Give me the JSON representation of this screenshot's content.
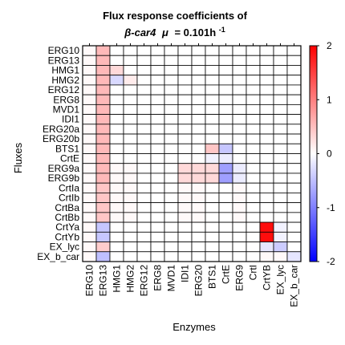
{
  "chart_data": {
    "type": "heatmap",
    "title_line1": "Flux response coefficients of",
    "title_line2_prefix": "β-car4",
    "title_mu": "μ",
    "title_line2_suffix": "= 0.101h",
    "title_superscript": "-1",
    "xlabel": "Enzymes",
    "ylabel": "Fluxes",
    "x_categories": [
      "ERG10",
      "ERG13",
      "HMG1",
      "HMG2",
      "ERG12",
      "ERG8",
      "MVD1",
      "IDI1",
      "ERG20",
      "BTS1",
      "CrtE",
      "ERG9",
      "CrtI",
      "CrtYB",
      "EX_lyc",
      "EX_b_car"
    ],
    "y_categories": [
      "ERG10",
      "ERG13",
      "HMG1",
      "HMG2",
      "ERG12",
      "ERG8",
      "MVD1",
      "IDI1",
      "ERG20a",
      "ERG20b",
      "BTS1",
      "CrtE",
      "ERG9a",
      "ERG9b",
      "CrtIa",
      "CrtIb",
      "CrtBa",
      "CrtBb",
      "CrtYa",
      "CrtYb",
      "EX_lyc",
      "EX_b_car"
    ],
    "values": [
      [
        0.05,
        0.55,
        0,
        0,
        0,
        0,
        0,
        0,
        0,
        0,
        0,
        0,
        0,
        0,
        0,
        0
      ],
      [
        0.05,
        0.55,
        0,
        0,
        0,
        0,
        0,
        0,
        0,
        0,
        0,
        0,
        0,
        0,
        0,
        0
      ],
      [
        0.05,
        0.55,
        0.3,
        0,
        0,
        0,
        0,
        0,
        0,
        0,
        0,
        0,
        0,
        0,
        0,
        0
      ],
      [
        0.05,
        0.55,
        -0.3,
        0.15,
        0,
        0,
        0,
        0,
        0,
        0,
        0,
        0,
        0,
        0,
        0,
        0
      ],
      [
        0.05,
        0.55,
        0,
        0,
        0,
        0,
        0,
        0,
        0,
        0,
        0,
        0,
        0,
        0,
        0,
        0
      ],
      [
        0.05,
        0.55,
        0,
        0,
        0,
        0,
        0,
        0,
        0,
        0,
        0,
        0,
        0,
        0,
        0,
        0
      ],
      [
        0.05,
        0.55,
        0,
        0,
        0,
        0,
        0,
        0,
        0,
        0,
        0,
        0,
        0,
        0,
        0,
        0
      ],
      [
        0.05,
        0.55,
        0,
        0,
        0,
        0,
        0,
        0,
        0,
        0,
        0,
        0,
        0,
        0,
        0,
        0
      ],
      [
        0.05,
        0.55,
        0,
        0,
        0,
        0,
        0,
        0,
        0,
        0,
        0,
        0,
        0,
        0,
        0,
        0
      ],
      [
        0.05,
        0.55,
        0,
        0,
        0,
        0,
        0,
        0,
        0,
        0,
        0,
        0,
        0,
        0,
        0,
        0
      ],
      [
        0.05,
        0.55,
        0,
        0,
        0,
        0,
        0,
        0,
        0,
        0.45,
        -0.45,
        0,
        0,
        0,
        0,
        0
      ],
      [
        0.05,
        0.55,
        0,
        0,
        0,
        0,
        0,
        0,
        0,
        -0.1,
        -0.15,
        0,
        0,
        0,
        0,
        0
      ],
      [
        0.05,
        0.55,
        0.05,
        0.05,
        0,
        0,
        0,
        0.3,
        0.3,
        0.3,
        -0.75,
        -0.15,
        0,
        0,
        0,
        0
      ],
      [
        0.05,
        0.55,
        0.05,
        0.05,
        0,
        0,
        0,
        0.3,
        0.3,
        0.3,
        -0.75,
        -0.15,
        0,
        0,
        0,
        0
      ],
      [
        0.05,
        0.45,
        0.05,
        0.05,
        0,
        0,
        0,
        0.05,
        0.05,
        0,
        0,
        0.05,
        0,
        0,
        0,
        0
      ],
      [
        0.05,
        0.45,
        0.05,
        0.05,
        0,
        0,
        0,
        0.05,
        0.05,
        0,
        0,
        0.05,
        0,
        0,
        0,
        0
      ],
      [
        0.05,
        0.45,
        0.05,
        0.05,
        0,
        0,
        0,
        0.05,
        0.05,
        0,
        0,
        0.05,
        0,
        0,
        0,
        0
      ],
      [
        0.05,
        0.45,
        0.05,
        0.05,
        0,
        0,
        0,
        0.05,
        0.05,
        0,
        0,
        0.05,
        0,
        0,
        0,
        0
      ],
      [
        0.05,
        -0.45,
        0,
        0,
        0,
        0,
        0,
        0,
        0,
        0,
        0,
        0,
        0,
        1.9,
        -0.1,
        0
      ],
      [
        0.05,
        -0.45,
        0,
        0,
        0,
        0,
        0,
        0,
        0,
        0,
        0,
        0,
        0,
        1.9,
        -0.1,
        0
      ],
      [
        0.05,
        0.4,
        0,
        0,
        0,
        0,
        0,
        0,
        0,
        0,
        0,
        0,
        0,
        -0.2,
        -0.4,
        0
      ],
      [
        0.05,
        -0.5,
        0,
        0,
        0,
        0,
        0,
        0,
        0,
        0,
        0,
        0,
        0,
        0.05,
        0.05,
        -0.2
      ]
    ],
    "colorbar": {
      "min": -2,
      "max": 2,
      "ticks": [
        "2",
        "1",
        "0",
        "-1",
        "-2"
      ],
      "colors": {
        "negative": "#0000ff",
        "zero": "#ffffff",
        "positive": "#ff0000"
      }
    },
    "grid": true
  }
}
